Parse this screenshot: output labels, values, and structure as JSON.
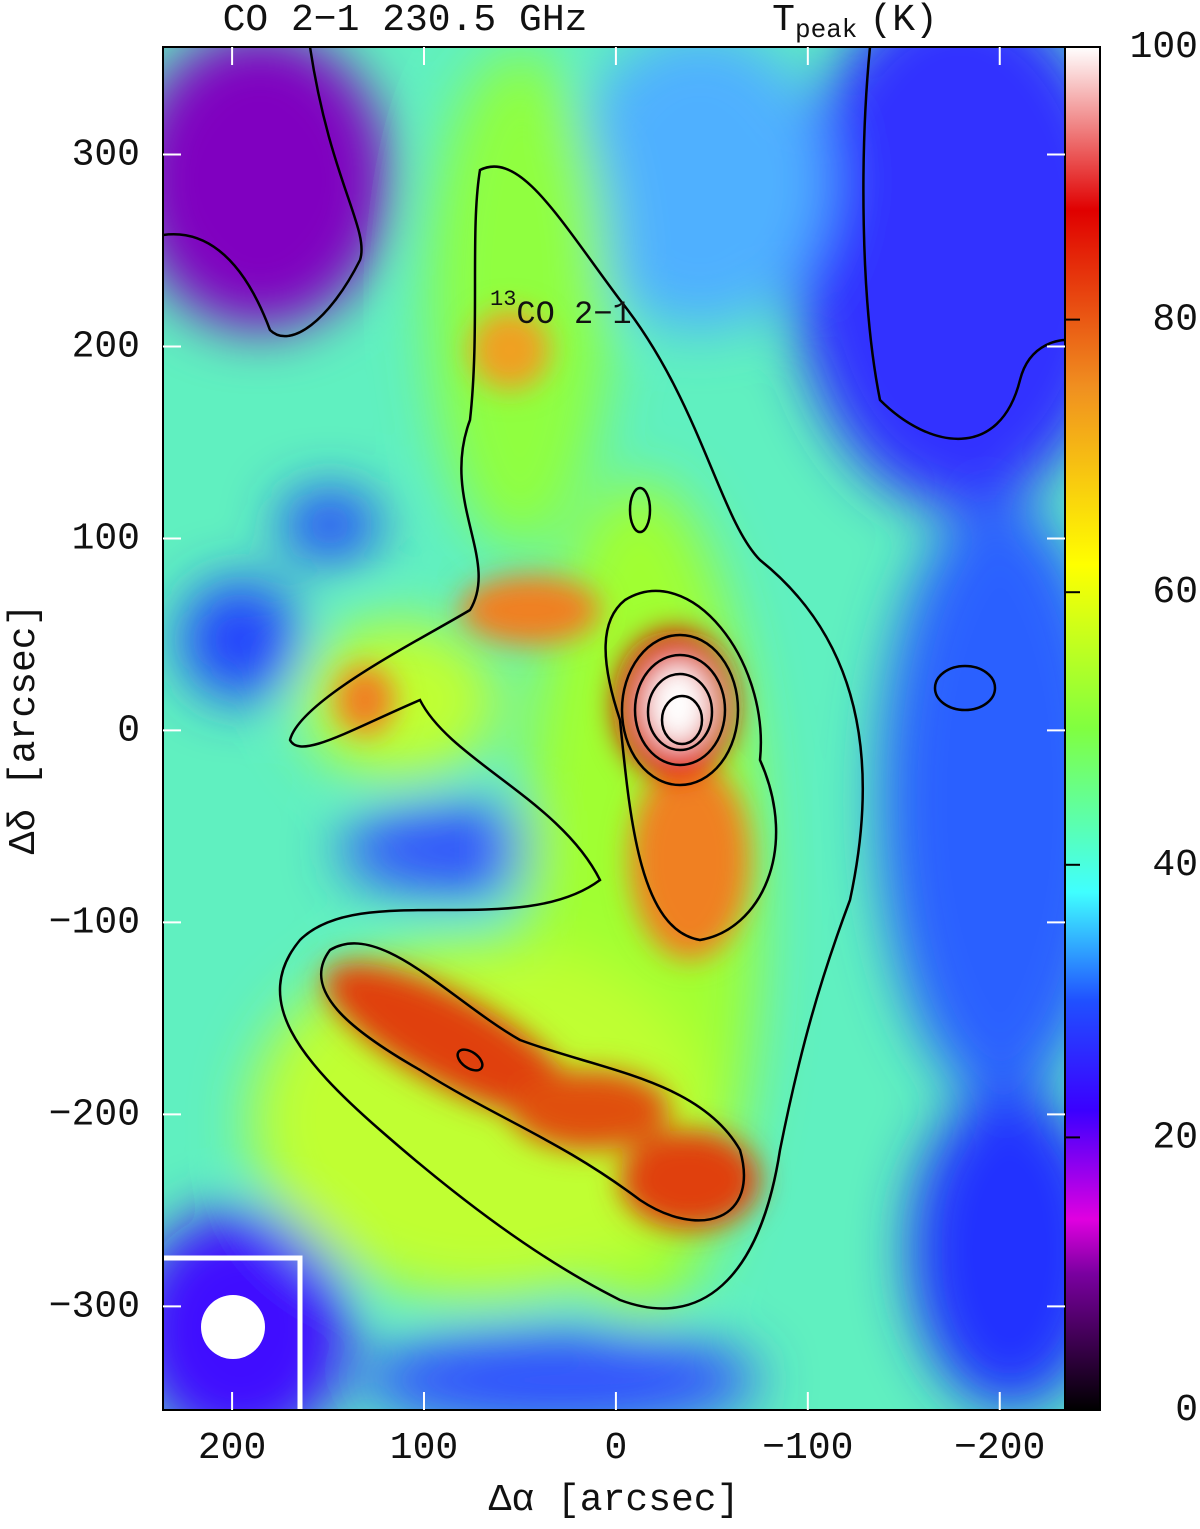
{
  "chart_data": {
    "type": "heatmap",
    "title": "CO 2−1 230.5 GHz",
    "colorbar_title": {
      "main": "T",
      "sub": "peak",
      "unit": "(K)"
    },
    "annotation": {
      "sup": "13",
      "text": "CO 2−1"
    },
    "xlabel": "Δα [arcsec]",
    "ylabel": "Δδ [arcsec]",
    "xlim": [
      236,
      -234
    ],
    "ylim": [
      -354,
      356
    ],
    "xticks": [
      200,
      100,
      0,
      {
        "value": -100,
        "label": "−100"
      },
      {
        "value": -200,
        "label": "−200"
      }
    ],
    "yticks": [
      300,
      200,
      100,
      0,
      {
        "value": -100,
        "label": "−100"
      },
      {
        "value": -200,
        "label": "−200"
      },
      {
        "value": -300,
        "label": "−300"
      }
    ],
    "colorbar": {
      "lim": [
        0,
        100
      ],
      "ticks": [
        0,
        20,
        40,
        60,
        80,
        100
      ],
      "colorscale": [
        [
          0,
          "#000000"
        ],
        [
          10,
          "#7a00a0"
        ],
        [
          14,
          "#e000e0"
        ],
        [
          22,
          "#3a00ff"
        ],
        [
          30,
          "#2050ff"
        ],
        [
          38,
          "#40ffff"
        ],
        [
          50,
          "#80ff40"
        ],
        [
          62,
          "#ffff00"
        ],
        [
          75,
          "#f09020"
        ],
        [
          88,
          "#e00000"
        ],
        [
          100,
          "#ffffff"
        ]
      ]
    }
  }
}
